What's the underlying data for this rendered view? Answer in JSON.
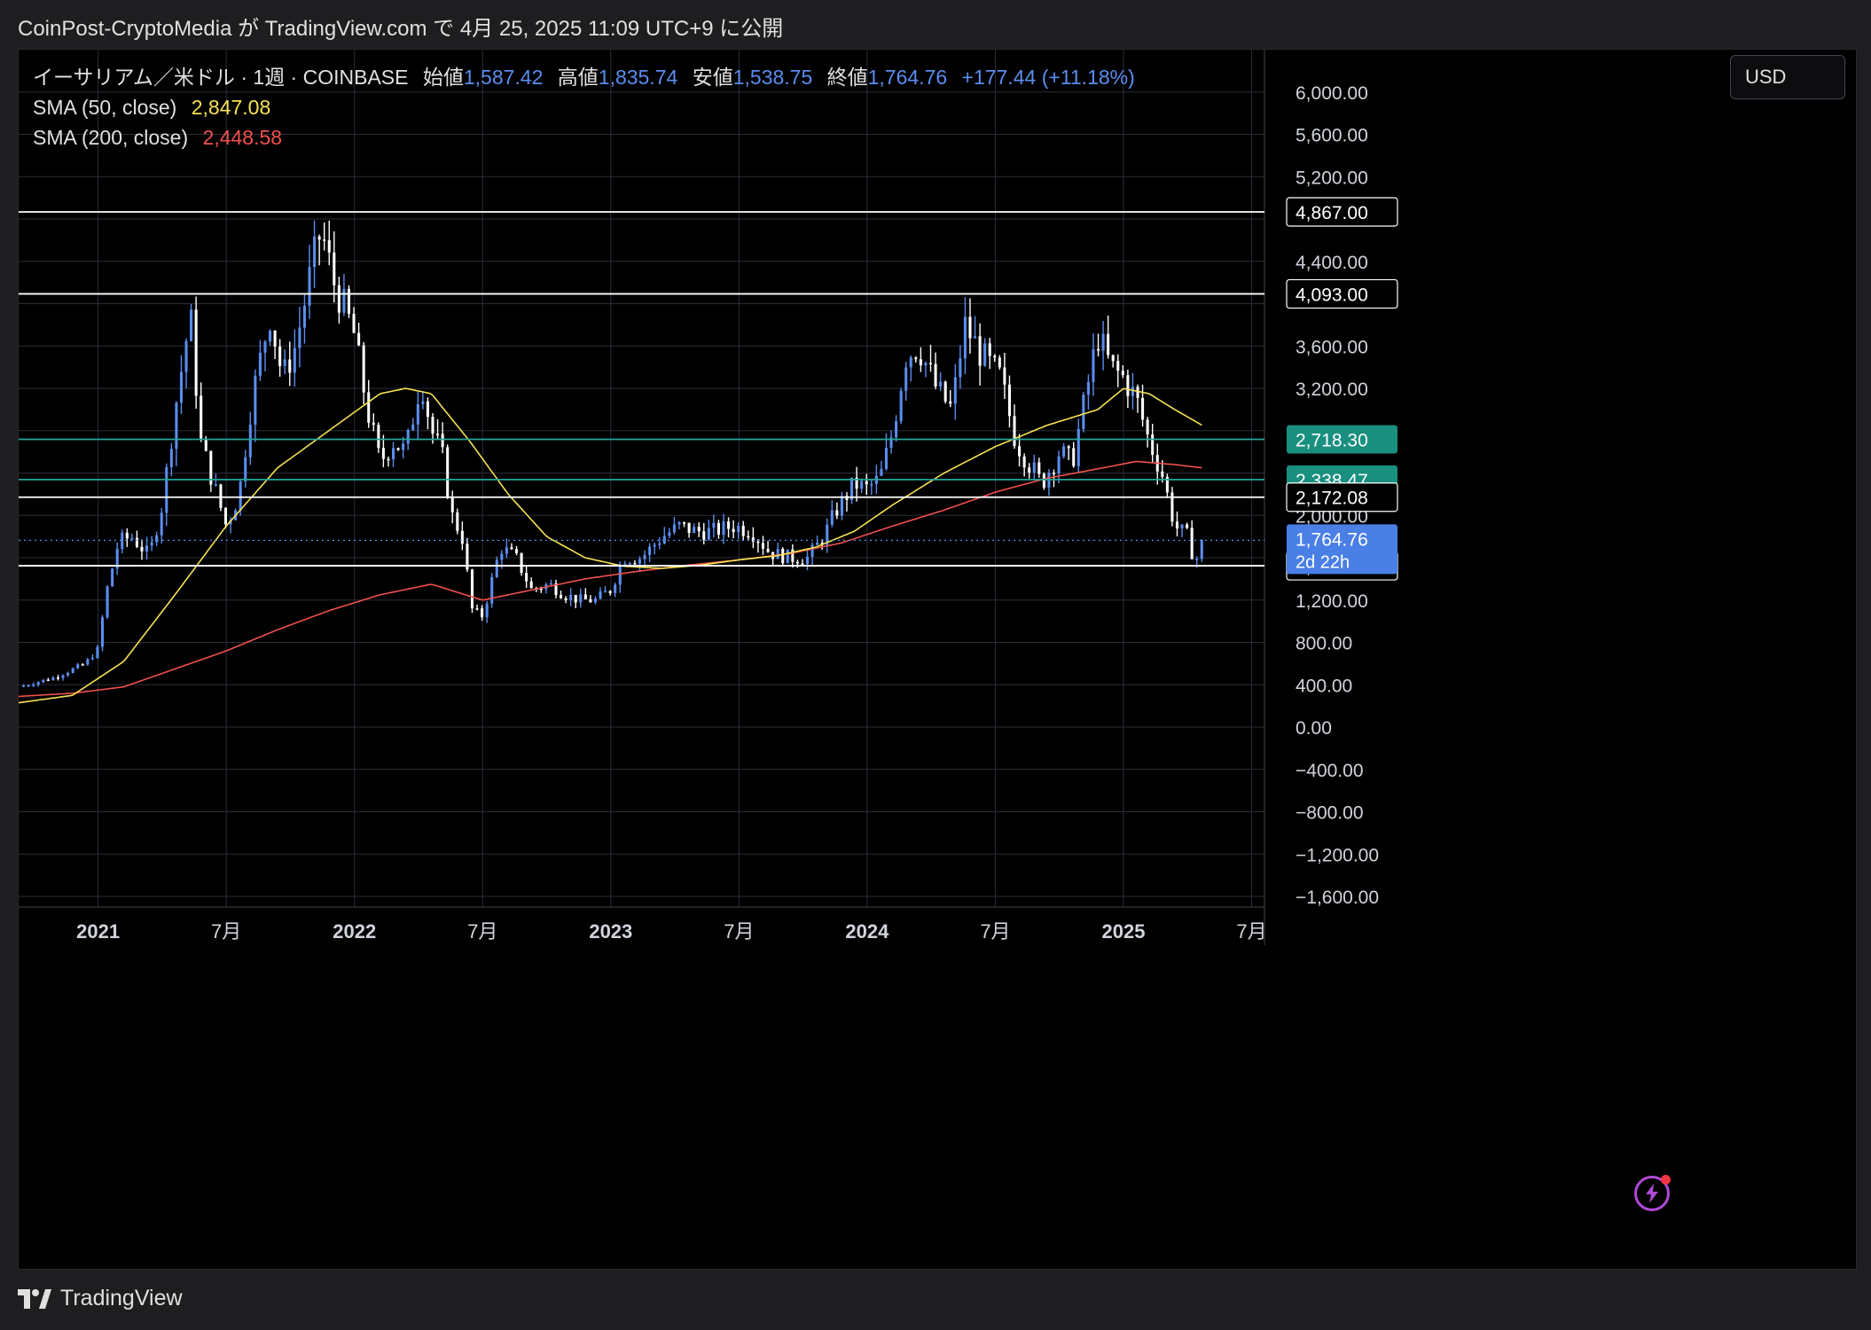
{
  "credit": "CoinPost-CryptoMedia が TradingView.com で 4月 25, 2025 11:09 UTC+9 に公開",
  "legend": {
    "symbol": "イーサリアム／米ドル · 1週 · COINBASE",
    "open_label": "始値",
    "open": "1,587.42",
    "high_label": "高値",
    "high": "1,835.74",
    "low_label": "安値",
    "low": "1,538.75",
    "close_label": "終値",
    "close": "1,764.76",
    "change": "+177.44 (+11.18%)",
    "sma50_label": "SMA (50, close)",
    "sma50_value": "2,847.08",
    "sma200_label": "SMA (200, close)",
    "sma200_value": "2,448.58"
  },
  "currency": "USD",
  "footer_brand": "TradingView",
  "colors": {
    "bull": "#5b8def",
    "bear": "#ffffff",
    "sma50": "#f7e252",
    "sma200": "#f0504e",
    "hline_white": "#ffffff",
    "hline_green": "#26a69a",
    "grid": "#2a2e39",
    "axis_text": "#d1d4dc"
  },
  "chart_data": {
    "type": "candlestick",
    "timeframe": "1週",
    "ylim": [
      -1700,
      6400
    ],
    "yticks": [
      6000,
      5600,
      5200,
      4400,
      3600,
      3200,
      2000,
      1200,
      800,
      400,
      0,
      -400,
      -800,
      -1200,
      -1600
    ],
    "ytick_labels": [
      "6,000.00",
      "5,600.00",
      "5,200.00",
      "4,400.00",
      "3,600.00",
      "3,200.00",
      "2,000.00",
      "1,200.00",
      "800.00",
      "400.00",
      "0.00",
      "−400.00",
      "−800.00",
      "−1,200.00",
      "−1,600.00"
    ],
    "xticks": [
      {
        "label": "2021",
        "t": 2021.0,
        "bold": true
      },
      {
        "label": "7月",
        "t": 2021.5,
        "bold": false
      },
      {
        "label": "2022",
        "t": 2022.0,
        "bold": true
      },
      {
        "label": "7月",
        "t": 2022.5,
        "bold": false
      },
      {
        "label": "2023",
        "t": 2023.0,
        "bold": true
      },
      {
        "label": "7月",
        "t": 2023.5,
        "bold": false
      },
      {
        "label": "2024",
        "t": 2024.0,
        "bold": true
      },
      {
        "label": "7月",
        "t": 2024.5,
        "bold": false
      },
      {
        "label": "2025",
        "t": 2025.0,
        "bold": true
      },
      {
        "label": "7月",
        "t": 2025.5,
        "bold": false
      }
    ],
    "xlim": [
      2020.69,
      2025.55
    ],
    "horizontal_lines": [
      {
        "value": 4867.0,
        "label": "4,867.00",
        "color": "white"
      },
      {
        "value": 4093.0,
        "label": "4,093.00",
        "color": "white"
      },
      {
        "value": 2718.3,
        "label": "2,718.30",
        "color": "green"
      },
      {
        "value": 2338.47,
        "label": "2,338.47",
        "color": "green"
      },
      {
        "value": 2172.08,
        "label": "2,172.08",
        "color": "white"
      },
      {
        "value": 1524.32,
        "label": "1,524.32",
        "color": "white"
      }
    ],
    "last_price": {
      "value": 1764.76,
      "label": "1,764.76",
      "countdown": "2d 22h"
    },
    "close_anchors": [
      [
        2020.69,
        380
      ],
      [
        2020.83,
        470
      ],
      [
        2020.95,
        600
      ],
      [
        2021.0,
        740
      ],
      [
        2021.03,
        1250
      ],
      [
        2021.08,
        1750
      ],
      [
        2021.13,
        1800
      ],
      [
        2021.2,
        1620
      ],
      [
        2021.25,
        2100
      ],
      [
        2021.3,
        3000
      ],
      [
        2021.36,
        3900
      ],
      [
        2021.4,
        2700
      ],
      [
        2021.45,
        2300
      ],
      [
        2021.5,
        1900
      ],
      [
        2021.55,
        2200
      ],
      [
        2021.6,
        3100
      ],
      [
        2021.67,
        3900
      ],
      [
        2021.72,
        3300
      ],
      [
        2021.77,
        3600
      ],
      [
        2021.83,
        4300
      ],
      [
        2021.87,
        4700
      ],
      [
        2021.92,
        4200
      ],
      [
        2021.97,
        3900
      ],
      [
        2022.0,
        3700
      ],
      [
        2022.05,
        3000
      ],
      [
        2022.1,
        2500
      ],
      [
        2022.15,
        2700
      ],
      [
        2022.2,
        2600
      ],
      [
        2022.26,
        3300
      ],
      [
        2022.3,
        2800
      ],
      [
        2022.34,
        2600
      ],
      [
        2022.38,
        2000
      ],
      [
        2022.42,
        1800
      ],
      [
        2022.46,
        1100
      ],
      [
        2022.5,
        1050
      ],
      [
        2022.57,
        1700
      ],
      [
        2022.63,
        1600
      ],
      [
        2022.69,
        1300
      ],
      [
        2022.76,
        1350
      ],
      [
        2022.82,
        1250
      ],
      [
        2022.88,
        1200
      ],
      [
        2022.94,
        1200
      ],
      [
        2023.0,
        1300
      ],
      [
        2023.05,
        1600
      ],
      [
        2023.12,
        1600
      ],
      [
        2023.2,
        1800
      ],
      [
        2023.27,
        1900
      ],
      [
        2023.33,
        1850
      ],
      [
        2023.4,
        1850
      ],
      [
        2023.48,
        1900
      ],
      [
        2023.55,
        1850
      ],
      [
        2023.62,
        1650
      ],
      [
        2023.7,
        1600
      ],
      [
        2023.77,
        1600
      ],
      [
        2023.83,
        1800
      ],
      [
        2023.88,
        2050
      ],
      [
        2023.95,
        2300
      ],
      [
        2024.0,
        2250
      ],
      [
        2024.05,
        2350
      ],
      [
        2024.1,
        2800
      ],
      [
        2024.15,
        3500
      ],
      [
        2024.2,
        3600
      ],
      [
        2024.27,
        3200
      ],
      [
        2024.33,
        3000
      ],
      [
        2024.38,
        3800
      ],
      [
        2024.45,
        3500
      ],
      [
        2024.52,
        3300
      ],
      [
        2024.58,
        2700
      ],
      [
        2024.63,
        2500
      ],
      [
        2024.68,
        2300
      ],
      [
        2024.75,
        2600
      ],
      [
        2024.8,
        2500
      ],
      [
        2024.85,
        3100
      ],
      [
        2024.9,
        3700
      ],
      [
        2024.95,
        3400
      ],
      [
        2025.0,
        3300
      ],
      [
        2025.05,
        3100
      ],
      [
        2025.1,
        2700
      ],
      [
        2025.15,
        2400
      ],
      [
        2025.2,
        1900
      ],
      [
        2025.25,
        1800
      ],
      [
        2025.28,
        1550
      ],
      [
        2025.31,
        1764.76
      ]
    ],
    "sma50_anchors": [
      [
        2020.69,
        230
      ],
      [
        2020.9,
        300
      ],
      [
        2021.1,
        620
      ],
      [
        2021.3,
        1250
      ],
      [
        2021.5,
        1900
      ],
      [
        2021.7,
        2450
      ],
      [
        2021.9,
        2800
      ],
      [
        2022.1,
        3150
      ],
      [
        2022.2,
        3200
      ],
      [
        2022.3,
        3150
      ],
      [
        2022.45,
        2700
      ],
      [
        2022.6,
        2200
      ],
      [
        2022.75,
        1800
      ],
      [
        2022.9,
        1600
      ],
      [
        2023.05,
        1520
      ],
      [
        2023.2,
        1500
      ],
      [
        2023.35,
        1530
      ],
      [
        2023.5,
        1580
      ],
      [
        2023.65,
        1620
      ],
      [
        2023.8,
        1700
      ],
      [
        2023.95,
        1850
      ],
      [
        2024.1,
        2100
      ],
      [
        2024.3,
        2400
      ],
      [
        2024.5,
        2650
      ],
      [
        2024.7,
        2850
      ],
      [
        2024.9,
        3000
      ],
      [
        2025.0,
        3200
      ],
      [
        2025.1,
        3150
      ],
      [
        2025.2,
        3000
      ],
      [
        2025.31,
        2847
      ]
    ],
    "sma200_anchors": [
      [
        2020.69,
        290
      ],
      [
        2020.9,
        320
      ],
      [
        2021.1,
        380
      ],
      [
        2021.3,
        550
      ],
      [
        2021.5,
        720
      ],
      [
        2021.7,
        920
      ],
      [
        2021.9,
        1100
      ],
      [
        2022.1,
        1250
      ],
      [
        2022.3,
        1350
      ],
      [
        2022.5,
        1200
      ],
      [
        2022.7,
        1300
      ],
      [
        2022.9,
        1400
      ],
      [
        2023.1,
        1470
      ],
      [
        2023.3,
        1530
      ],
      [
        2023.5,
        1580
      ],
      [
        2023.7,
        1640
      ],
      [
        2023.9,
        1740
      ],
      [
        2024.1,
        1900
      ],
      [
        2024.3,
        2050
      ],
      [
        2024.5,
        2220
      ],
      [
        2024.7,
        2350
      ],
      [
        2024.9,
        2440
      ],
      [
        2025.05,
        2510
      ],
      [
        2025.2,
        2480
      ],
      [
        2025.31,
        2448.58
      ]
    ]
  }
}
